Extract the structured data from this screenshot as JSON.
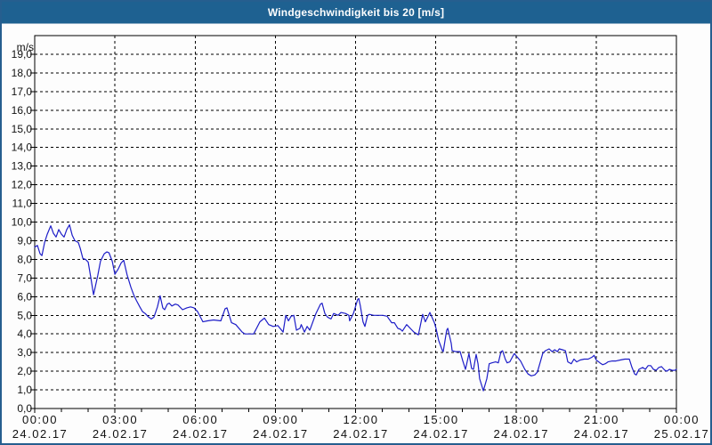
{
  "window": {
    "title": "Windgeschwindigkeit bis 20 [m/s]"
  },
  "colors": {
    "title_bar": "#1e6191",
    "title_text": "#ffffff",
    "window_border": "#265e8f",
    "background": "#fdfdfd",
    "grid": "#000000",
    "text": "#101010",
    "line": "#1d1dc8"
  },
  "chart_data": {
    "type": "line",
    "title": "Windgeschwindigkeit bis 20 [m/s]",
    "xlabel": "",
    "ylabel": "m/s",
    "ylim": [
      0,
      20
    ],
    "xlim_hours": [
      0,
      24
    ],
    "grid": true,
    "legend": false,
    "y_ticks": [
      "0,0",
      "1,0",
      "2,0",
      "3,0",
      "4,0",
      "5,0",
      "6,0",
      "7,0",
      "8,0",
      "9,0",
      "10,0",
      "11,0",
      "12,0",
      "13,0",
      "14,0",
      "15,0",
      "16,0",
      "17,0",
      "18,0",
      "19,0"
    ],
    "x_ticks": [
      {
        "h": 0,
        "time": "00:00",
        "date": "24.02.17"
      },
      {
        "h": 3,
        "time": "03:00",
        "date": "24.02.17"
      },
      {
        "h": 6,
        "time": "06:00",
        "date": "24.02.17"
      },
      {
        "h": 9,
        "time": "09:00",
        "date": "24.02.17"
      },
      {
        "h": 12,
        "time": "12:00",
        "date": "24.02.17"
      },
      {
        "h": 15,
        "time": "15:00",
        "date": "24.02.17"
      },
      {
        "h": 18,
        "time": "18:00",
        "date": "24.02.17"
      },
      {
        "h": 21,
        "time": "21:00",
        "date": "24.02.17"
      },
      {
        "h": 24,
        "time": "00:00",
        "date": "25.02.17"
      }
    ],
    "minor_x_tick_every_hours": 1,
    "series": [
      {
        "name": "Windgeschwindigkeit",
        "unit": "m/s",
        "color": "#1d1dc8",
        "points": [
          [
            0,
            8.65
          ],
          [
            0.1,
            8.75
          ],
          [
            0.2,
            8.3
          ],
          [
            0.27,
            8.2
          ],
          [
            0.37,
            8.9
          ],
          [
            0.47,
            9.35
          ],
          [
            0.6,
            9.8
          ],
          [
            0.7,
            9.4
          ],
          [
            0.8,
            9.2
          ],
          [
            0.9,
            9.6
          ],
          [
            1,
            9.35
          ],
          [
            1.1,
            9.2
          ],
          [
            1.2,
            9.6
          ],
          [
            1.3,
            9.85
          ],
          [
            1.4,
            9.3
          ],
          [
            1.5,
            9.0
          ],
          [
            1.63,
            8.9
          ],
          [
            1.7,
            8.6
          ],
          [
            1.8,
            8.05
          ],
          [
            1.9,
            8.0
          ],
          [
            2,
            7.85
          ],
          [
            2.1,
            7.0
          ],
          [
            2.2,
            6.1
          ],
          [
            2.36,
            7.15
          ],
          [
            2.46,
            7.9
          ],
          [
            2.6,
            8.3
          ],
          [
            2.7,
            8.4
          ],
          [
            2.78,
            8.35
          ],
          [
            2.9,
            7.9
          ],
          [
            3,
            7.2
          ],
          [
            3.13,
            7.5
          ],
          [
            3.23,
            7.8
          ],
          [
            3.33,
            7.95
          ],
          [
            3.46,
            7.15
          ],
          [
            3.6,
            6.5
          ],
          [
            3.7,
            6.1
          ],
          [
            3.8,
            5.8
          ],
          [
            3.93,
            5.45
          ],
          [
            4.03,
            5.2
          ],
          [
            4.13,
            5.1
          ],
          [
            4.26,
            4.9
          ],
          [
            4.36,
            4.8
          ],
          [
            4.46,
            4.9
          ],
          [
            4.59,
            5.45
          ],
          [
            4.69,
            6.05
          ],
          [
            4.79,
            5.4
          ],
          [
            4.86,
            5.3
          ],
          [
            4.96,
            5.6
          ],
          [
            5.03,
            5.65
          ],
          [
            5.13,
            5.5
          ],
          [
            5.26,
            5.6
          ],
          [
            5.36,
            5.55
          ],
          [
            5.53,
            5.3
          ],
          [
            5.69,
            5.4
          ],
          [
            5.83,
            5.45
          ],
          [
            5.96,
            5.4
          ],
          [
            6.09,
            5.2
          ],
          [
            6.29,
            4.65
          ],
          [
            6.46,
            4.7
          ],
          [
            6.69,
            4.75
          ],
          [
            6.96,
            4.7
          ],
          [
            7.12,
            5.35
          ],
          [
            7.19,
            5.4
          ],
          [
            7.36,
            4.6
          ],
          [
            7.52,
            4.5
          ],
          [
            7.76,
            4.1
          ],
          [
            7.86,
            4.0
          ],
          [
            8.02,
            4.0
          ],
          [
            8.19,
            4.0
          ],
          [
            8.42,
            4.65
          ],
          [
            8.59,
            4.85
          ],
          [
            8.75,
            4.5
          ],
          [
            8.92,
            4.4
          ],
          [
            9.09,
            4.45
          ],
          [
            9.29,
            4.1
          ],
          [
            9.39,
            5.0
          ],
          [
            9.49,
            4.7
          ],
          [
            9.59,
            4.95
          ],
          [
            9.69,
            5.0
          ],
          [
            9.79,
            4.2
          ],
          [
            9.92,
            4.3
          ],
          [
            9.97,
            4.5
          ],
          [
            10.09,
            4.1
          ],
          [
            10.19,
            4.4
          ],
          [
            10.29,
            4.2
          ],
          [
            10.52,
            5.1
          ],
          [
            10.69,
            5.6
          ],
          [
            10.75,
            5.65
          ],
          [
            10.85,
            5.1
          ],
          [
            10.95,
            4.9
          ],
          [
            11.08,
            4.8
          ],
          [
            11.18,
            5.1
          ],
          [
            11.35,
            5.0
          ],
          [
            11.45,
            5.15
          ],
          [
            11.62,
            5.1
          ],
          [
            11.75,
            5.0
          ],
          [
            11.78,
            4.7
          ],
          [
            11.92,
            5.1
          ],
          [
            12.08,
            5.85
          ],
          [
            12.12,
            5.9
          ],
          [
            12.18,
            5.5
          ],
          [
            12.28,
            4.65
          ],
          [
            12.35,
            4.4
          ],
          [
            12.45,
            5.0
          ],
          [
            12.52,
            5.05
          ],
          [
            12.68,
            5.0
          ],
          [
            12.85,
            5.0
          ],
          [
            13.02,
            5.0
          ],
          [
            13.18,
            4.95
          ],
          [
            13.35,
            4.6
          ],
          [
            13.45,
            4.6
          ],
          [
            13.58,
            4.3
          ],
          [
            13.68,
            4.25
          ],
          [
            13.75,
            4.15
          ],
          [
            13.91,
            4.5
          ],
          [
            14.08,
            4.25
          ],
          [
            14.18,
            4.1
          ],
          [
            14.35,
            3.95
          ],
          [
            14.51,
            5.05
          ],
          [
            14.61,
            4.65
          ],
          [
            14.78,
            5.15
          ],
          [
            14.95,
            4.6
          ],
          [
            15.01,
            4.3
          ],
          [
            15.11,
            3.65
          ],
          [
            15.25,
            3.1
          ],
          [
            15.28,
            3.05
          ],
          [
            15.41,
            4.2
          ],
          [
            15.45,
            4.3
          ],
          [
            15.58,
            3.5
          ],
          [
            15.61,
            3.1
          ],
          [
            15.74,
            3.05
          ],
          [
            15.91,
            3.05
          ],
          [
            16.01,
            2.55
          ],
          [
            16.11,
            2.1
          ],
          [
            16.18,
            2.55
          ],
          [
            16.24,
            2.95
          ],
          [
            16.34,
            2.15
          ],
          [
            16.41,
            2.1
          ],
          [
            16.51,
            2.9
          ],
          [
            16.58,
            2.4
          ],
          [
            16.64,
            1.6
          ],
          [
            16.78,
            0.95
          ],
          [
            16.91,
            1.6
          ],
          [
            17.0,
            2.4
          ],
          [
            17.1,
            2.45
          ],
          [
            17.24,
            2.5
          ],
          [
            17.34,
            2.45
          ],
          [
            17.44,
            3.05
          ],
          [
            17.5,
            3.1
          ],
          [
            17.6,
            2.65
          ],
          [
            17.67,
            2.45
          ],
          [
            17.77,
            2.5
          ],
          [
            17.9,
            2.85
          ],
          [
            17.94,
            2.95
          ],
          [
            18.08,
            2.7
          ],
          [
            18.17,
            2.55
          ],
          [
            18.33,
            2.1
          ],
          [
            18.45,
            1.85
          ],
          [
            18.57,
            1.75
          ],
          [
            18.7,
            1.8
          ],
          [
            18.8,
            1.95
          ],
          [
            18.9,
            2.45
          ],
          [
            19.0,
            2.95
          ],
          [
            19.1,
            3.1
          ],
          [
            19.24,
            3.2
          ],
          [
            19.35,
            3.05
          ],
          [
            19.45,
            3.15
          ],
          [
            19.55,
            3.05
          ],
          [
            19.62,
            3.2
          ],
          [
            19.74,
            3.15
          ],
          [
            19.85,
            3.1
          ],
          [
            19.94,
            2.5
          ],
          [
            20.07,
            2.4
          ],
          [
            20.17,
            2.65
          ],
          [
            20.27,
            2.5
          ],
          [
            20.4,
            2.6
          ],
          [
            20.55,
            2.65
          ],
          [
            20.7,
            2.65
          ],
          [
            20.84,
            2.75
          ],
          [
            20.92,
            2.85
          ],
          [
            21.0,
            2.6
          ],
          [
            21.14,
            2.45
          ],
          [
            21.24,
            2.35
          ],
          [
            21.34,
            2.4
          ],
          [
            21.44,
            2.5
          ],
          [
            21.6,
            2.55
          ],
          [
            21.74,
            2.55
          ],
          [
            21.9,
            2.6
          ],
          [
            22.07,
            2.65
          ],
          [
            22.24,
            2.65
          ],
          [
            22.34,
            2.2
          ],
          [
            22.44,
            1.85
          ],
          [
            22.5,
            1.8
          ],
          [
            22.6,
            2.1
          ],
          [
            22.74,
            2.2
          ],
          [
            22.84,
            2.1
          ],
          [
            22.94,
            2.3
          ],
          [
            23.04,
            2.3
          ],
          [
            23.14,
            2.1
          ],
          [
            23.24,
            2.05
          ],
          [
            23.34,
            2.2
          ],
          [
            23.44,
            2.25
          ],
          [
            23.57,
            2.05
          ],
          [
            23.64,
            2.0
          ],
          [
            23.74,
            2.1
          ],
          [
            23.84,
            2.05
          ],
          [
            23.94,
            2.05
          ],
          [
            24.0,
            2.1
          ]
        ]
      }
    ]
  }
}
